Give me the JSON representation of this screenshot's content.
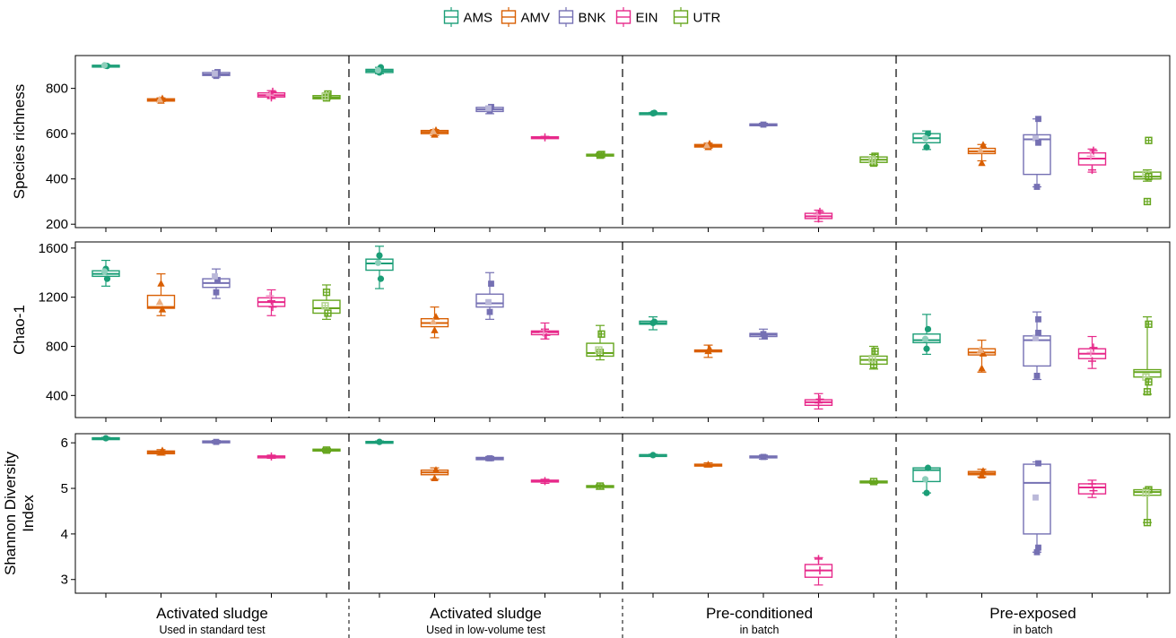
{
  "chart_data": {
    "type": "box",
    "legend": {
      "position": "top",
      "entries": [
        {
          "name": "AMS",
          "color": "#1b9e77"
        },
        {
          "name": "AMV",
          "color": "#d95f02"
        },
        {
          "name": "BNK",
          "color": "#7570b3"
        },
        {
          "name": "EIN",
          "color": "#e7298a"
        },
        {
          "name": "UTR",
          "color": "#66a61e"
        }
      ]
    },
    "groups": [
      {
        "title": "Activated sludge",
        "subtitle": "Used in standard test"
      },
      {
        "title": "Activated sludge",
        "subtitle": "Used in low-volume test"
      },
      {
        "title": "Pre-conditioned",
        "subtitle": "in batch"
      },
      {
        "title": "Pre-exposed",
        "subtitle": "in batch"
      }
    ],
    "panels": [
      {
        "ylabel": [
          "Species richness"
        ],
        "ylim": [
          185,
          945
        ],
        "yticks": [
          200,
          400,
          600,
          800
        ],
        "boxes": [
          [
            [
              896,
              898,
              900,
              902,
              904
            ],
            [
              742,
              744,
              748,
              754,
              758
            ],
            [
              850,
              857,
              862,
              870,
              878
            ],
            [
              755,
              762,
              770,
              780,
              790
            ],
            [
              752,
              754,
              760,
              768,
              780
            ]
          ],
          [
            [
              865,
              870,
              877,
              884,
              893
            ],
            [
              592,
              600,
              607,
              614,
              618
            ],
            [
              688,
              698,
              707,
              716,
              722
            ],
            [
              580,
              582,
              584,
              586,
              588
            ],
            [
              500,
              503,
              506,
              509,
              512
            ]
          ],
          [
            [
              686,
              688,
              690,
              692,
              694
            ],
            [
              536,
              541,
              547,
              552,
              558
            ],
            [
              634,
              637,
              640,
              643,
              646
            ],
            [
              212,
              225,
              235,
              248,
              262
            ],
            [
              462,
              473,
              485,
              497,
              508
            ]
          ],
          [
            [
              530,
              560,
              580,
              600,
              612
            ],
            [
              480,
              512,
              522,
              535,
              552
            ],
            [
              365,
              420,
              575,
              595,
              665
            ],
            [
              430,
              462,
              490,
              515,
              532
            ],
            [
              390,
              400,
              410,
              430,
              440
            ]
          ]
        ],
        "points": [
          [
            [
              900,
              899,
              902
            ],
            [
              745,
              755,
              750
            ],
            [
              855,
              872,
              865
            ],
            [
              760,
              785,
              770
            ],
            [
              758,
              775,
              765
            ]
          ],
          [
            [
              870,
              893,
              880
            ],
            [
              595,
              615,
              610
            ],
            [
              700,
              718,
              712
            ],
            [
              584
            ],
            [
              505,
              508
            ]
          ],
          [
            [
              690,
              692
            ],
            [
              540,
              555,
              548
            ],
            [
              640
            ],
            [
              225,
              255,
              240
            ],
            [
              470,
              500,
              485
            ]
          ],
          [
            [
              540,
              600,
              580
            ],
            [
              470,
              550,
              525
            ],
            [
              365,
              665,
              580,
              560
            ],
            [
              440,
              525,
              500
            ],
            [
              300,
              570,
              420,
              410
            ]
          ]
        ]
      },
      {
        "ylabel": [
          "Chao-1"
        ],
        "ylim": [
          220,
          1650
        ],
        "yticks": [
          400,
          800,
          1200,
          1600
        ],
        "boxes": [
          [
            [
              1290,
              1370,
              1390,
              1415,
              1500
            ],
            [
              1050,
              1110,
              1120,
              1215,
              1390
            ],
            [
              1190,
              1280,
              1315,
              1350,
              1430
            ],
            [
              1050,
              1125,
              1160,
              1195,
              1260
            ],
            [
              1020,
              1070,
              1110,
              1175,
              1300
            ]
          ],
          [
            [
              1270,
              1420,
              1475,
              1510,
              1615
            ],
            [
              870,
              960,
              990,
              1025,
              1120
            ],
            [
              1020,
              1120,
              1150,
              1225,
              1400
            ],
            [
              860,
              895,
              915,
              925,
              990
            ],
            [
              690,
              720,
              745,
              825,
              970
            ]
          ],
          [
            [
              935,
              980,
              990,
              1005,
              1040
            ],
            [
              710,
              760,
              765,
              770,
              810
            ],
            [
              860,
              880,
              895,
              905,
              940
            ],
            [
              290,
              320,
              345,
              365,
              415
            ],
            [
              615,
              655,
              690,
              720,
              800
            ]
          ],
          [
            [
              735,
              830,
              850,
              900,
              1060
            ],
            [
              590,
              730,
              750,
              780,
              850
            ],
            [
              530,
              640,
              850,
              885,
              1080
            ],
            [
              620,
              700,
              740,
              780,
              880
            ],
            [
              410,
              550,
              590,
              610,
              1040
            ]
          ]
        ],
        "points": [
          [
            [
              1430,
              1350,
              1410
            ],
            [
              1310,
              1100,
              1160
            ],
            [
              1240,
              1340,
              1370
            ],
            [
              1170,
              1120,
              1210
            ],
            [
              1240,
              1070,
              1130
            ]
          ],
          [
            [
              1540,
              1350,
              1480
            ],
            [
              930,
              1040,
              1000
            ],
            [
              1080,
              1310,
              1160
            ],
            [
              940,
              890,
              910
            ],
            [
              750,
              900,
              770
            ]
          ],
          [
            [
              990,
              1000
            ],
            [
              760,
              780
            ],
            [
              900,
              880
            ],
            [
              340,
              370
            ],
            [
              650,
              760,
              700
            ]
          ],
          [
            [
              780,
              940,
              860
            ],
            [
              620,
              740,
              770
            ],
            [
              560,
              1020,
              870,
              910
            ],
            [
              680,
              790,
              750
            ],
            [
              430,
              980,
              550,
              510
            ]
          ]
        ]
      },
      {
        "ylabel": [
          "Shannon Diversity",
          "Index"
        ],
        "ylim": [
          2.7,
          6.2
        ],
        "yticks": [
          3,
          4,
          5,
          6
        ],
        "boxes": [
          [
            [
              6.08,
              6.09,
              6.1,
              6.11,
              6.12
            ],
            [
              5.73,
              5.76,
              5.79,
              5.82,
              5.85
            ],
            [
              5.99,
              6.01,
              6.02,
              6.04,
              6.05
            ],
            [
              5.66,
              5.68,
              5.7,
              5.71,
              5.73
            ],
            [
              5.8,
              5.82,
              5.84,
              5.86,
              5.88
            ]
          ],
          [
            [
              6.0,
              6.01,
              6.02,
              6.03,
              6.04
            ],
            [
              5.2,
              5.3,
              5.35,
              5.4,
              5.45
            ],
            [
              5.61,
              5.63,
              5.65,
              5.68,
              5.7
            ],
            [
              5.11,
              5.14,
              5.16,
              5.18,
              5.2
            ],
            [
              4.98,
              5.02,
              5.04,
              5.06,
              5.08
            ]
          ],
          [
            [
              5.71,
              5.72,
              5.73,
              5.74,
              5.75
            ],
            [
              5.47,
              5.49,
              5.51,
              5.53,
              5.56
            ],
            [
              5.64,
              5.67,
              5.69,
              5.71,
              5.73
            ],
            [
              2.88,
              3.05,
              3.2,
              3.33,
              3.48
            ],
            [
              5.11,
              5.13,
              5.14,
              5.16,
              5.17
            ]
          ],
          [
            [
              4.9,
              5.15,
              5.4,
              5.45,
              5.45
            ],
            [
              5.25,
              5.3,
              5.33,
              5.37,
              5.42
            ],
            [
              3.6,
              4.0,
              5.12,
              5.53,
              5.58
            ],
            [
              4.8,
              4.88,
              5.02,
              5.1,
              5.18
            ],
            [
              4.25,
              4.85,
              4.92,
              4.97,
              5.0
            ]
          ]
        ],
        "points": [
          [
            [
              6.1
            ],
            [
              5.78,
              5.83
            ],
            [
              6.02
            ],
            [
              5.7
            ],
            [
              5.84
            ]
          ],
          [
            [
              6.02
            ],
            [
              5.22,
              5.4
            ],
            [
              5.66
            ],
            [
              5.16
            ],
            [
              5.05
            ]
          ],
          [
            [
              5.73
            ],
            [
              5.52
            ],
            [
              5.69
            ],
            [
              3.45,
              3.2
            ],
            [
              5.15
            ]
          ],
          [
            [
              4.9,
              5.45,
              5.2
            ],
            [
              5.28,
              5.38
            ],
            [
              3.6,
              5.55,
              4.8,
              3.7
            ],
            [
              5.1,
              4.95
            ],
            [
              4.25,
              4.97,
              4.9
            ]
          ]
        ]
      }
    ]
  }
}
